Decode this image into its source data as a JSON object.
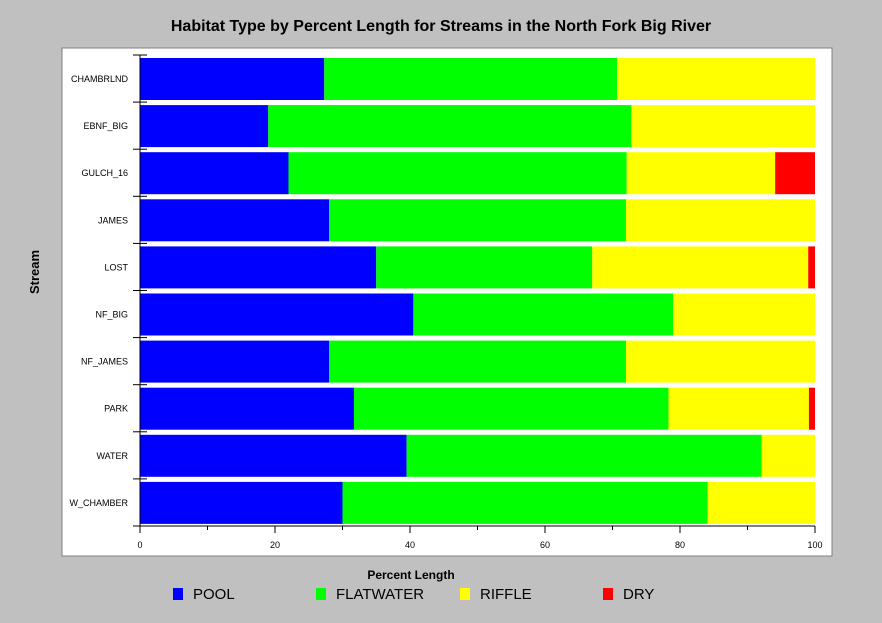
{
  "chart_data": {
    "type": "bar",
    "orientation": "horizontal",
    "stacked": true,
    "title": "Habitat Type by Percent Length for Streams in the North Fork Big River",
    "xlabel": "Percent Length",
    "ylabel": "Stream",
    "xlim": [
      0,
      100
    ],
    "xticks": [
      0,
      20,
      40,
      60,
      80,
      100
    ],
    "grid": false,
    "legend_position": "bottom",
    "categories": [
      "CHAMBRLND",
      "EBNF_BIG",
      "GULCH_16",
      "JAMES",
      "LOST",
      "NF_BIG",
      "NF_JAMES",
      "PARK",
      "WATER",
      "W_CHAMBER"
    ],
    "series": [
      {
        "name": "POOL",
        "color": "#0000ff",
        "values": [
          27.3,
          19.0,
          22.0,
          28.0,
          35.0,
          40.5,
          28.0,
          31.7,
          39.5,
          30.0
        ]
      },
      {
        "name": "FLATWATER",
        "color": "#00ff00",
        "values": [
          43.4,
          53.8,
          50.1,
          44.0,
          32.0,
          38.5,
          44.0,
          46.6,
          52.6,
          54.1
        ]
      },
      {
        "name": "RIFFLE",
        "color": "#ffff00",
        "values": [
          29.3,
          27.2,
          22.0,
          28.0,
          32.0,
          21.0,
          28.0,
          20.8,
          7.9,
          15.9
        ]
      },
      {
        "name": "DRY",
        "color": "#ff0000",
        "values": [
          0,
          0,
          5.9,
          0,
          1.0,
          0,
          0,
          0.9,
          0,
          0
        ]
      }
    ]
  }
}
